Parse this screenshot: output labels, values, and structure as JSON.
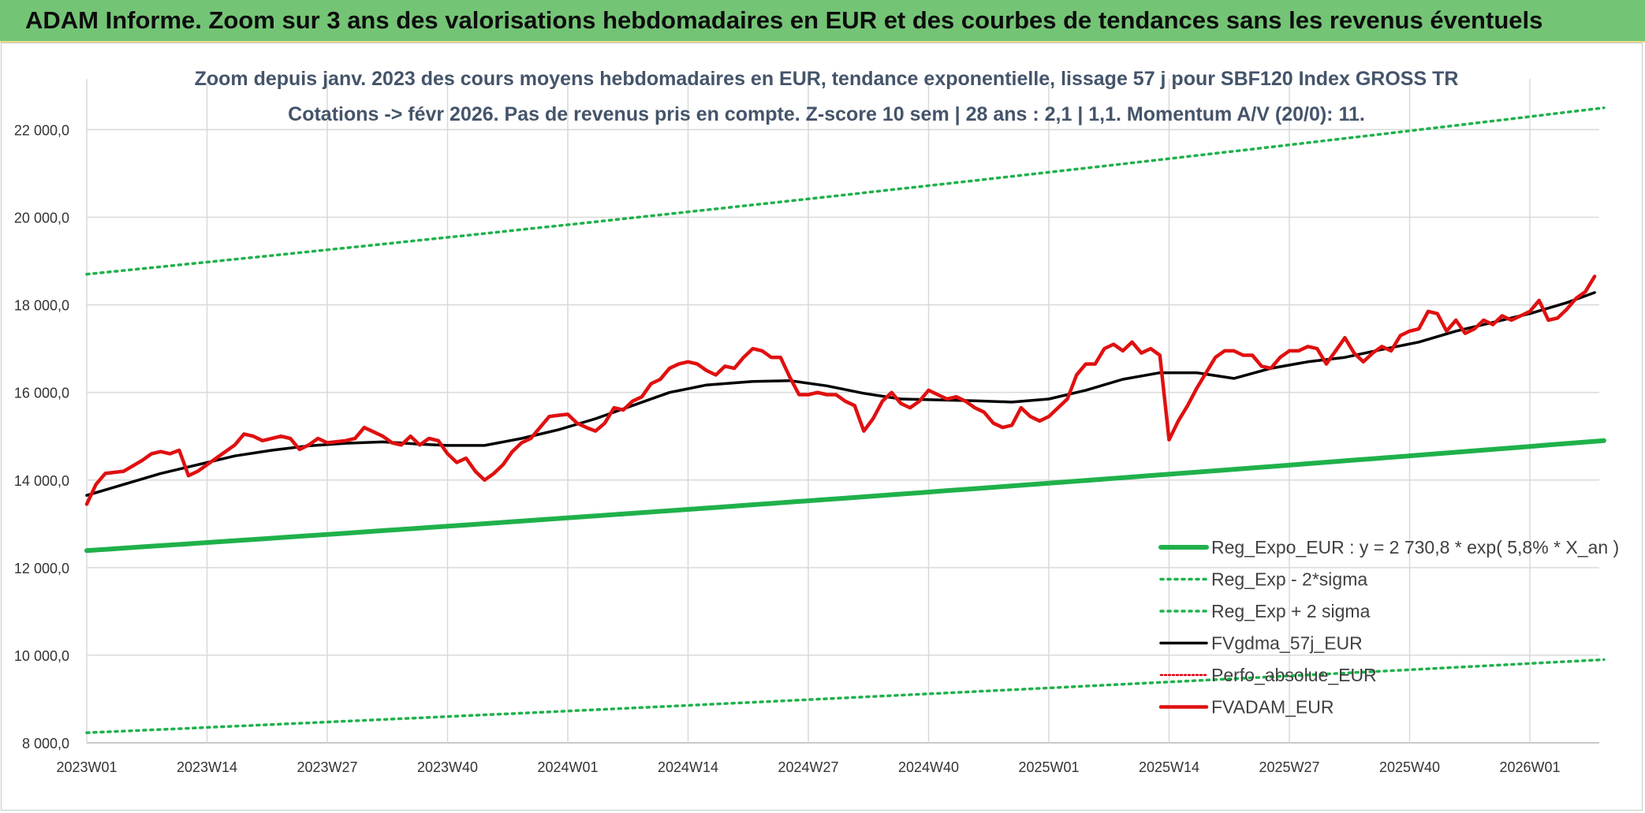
{
  "banner": {
    "title": "ADAM Informe. Zoom sur 3 ans des valorisations hebdomadaires en EUR et des courbes de tendances sans les revenus éventuels"
  },
  "colors": {
    "banner_bg": "#74c476",
    "reg_expo": "#1fb14b",
    "sigma": "#1fb14b",
    "fvgdma": "#000000",
    "perfo": "#e0000f",
    "fvadam": "#e01010"
  },
  "chart_data": {
    "type": "line",
    "title": "Zoom depuis janv. 2023 des cours moyens hebdomadaires en EUR, tendance exponentielle, lissage 57 j pour SBF120 Index GROSS TR",
    "subtitle": "Cotations -> févr 2026. Pas de revenus pris en compte. Z-score 10 sem | 28 ans : 2,1 | 1,1. Momentum A/V (20/0): 11.",
    "ylim": [
      8000,
      22800
    ],
    "yticks": [
      8000,
      10000,
      12000,
      14000,
      16000,
      18000,
      20000,
      22000
    ],
    "ytick_labels": [
      "8 000,0",
      "10 000,0",
      "12 000,0",
      "14 000,0",
      "16 000,0",
      "18 000,0",
      "20 000,0",
      "22 000,0"
    ],
    "xlim": [
      0,
      162
    ],
    "xticks": [
      0,
      13,
      26,
      39,
      52,
      65,
      78,
      91,
      104,
      117,
      130,
      143,
      156
    ],
    "xtick_labels": [
      "2023W01",
      "2023W14",
      "2023W27",
      "2023W40",
      "2024W01",
      "2024W14",
      "2024W27",
      "2024W40",
      "2025W01",
      "2025W14",
      "2025W27",
      "2025W40",
      "2026W01"
    ],
    "grid": true,
    "legend_position": "bottom-right",
    "series": [
      {
        "name": "Reg_Expo_EUR : y = 2 730,8 * exp( 5,8% *  X_an )",
        "style": "solid-thick",
        "x": [
          0,
          164
        ],
        "start": 12390,
        "end": 14900,
        "kind": "exp"
      },
      {
        "name": "Reg_Exp - 2*sigma",
        "style": "dotted",
        "x": [
          0,
          164
        ],
        "start": 8230,
        "end": 9900,
        "kind": "exp"
      },
      {
        "name": "Reg_Exp + 2 sigma",
        "style": "dotted",
        "x": [
          0,
          164
        ],
        "start": 18700,
        "end": 22500,
        "kind": "exp"
      },
      {
        "name": "FVgdma_57j_EUR",
        "style": "solid",
        "kind": "points",
        "points": [
          [
            0,
            13650
          ],
          [
            4,
            13900
          ],
          [
            8,
            14150
          ],
          [
            12,
            14350
          ],
          [
            16,
            14550
          ],
          [
            20,
            14680
          ],
          [
            24,
            14780
          ],
          [
            28,
            14840
          ],
          [
            32,
            14870
          ],
          [
            36,
            14820
          ],
          [
            39,
            14790
          ],
          [
            43,
            14790
          ],
          [
            47,
            14950
          ],
          [
            51,
            15150
          ],
          [
            55,
            15400
          ],
          [
            59,
            15700
          ],
          [
            63,
            16000
          ],
          [
            67,
            16170
          ],
          [
            72,
            16250
          ],
          [
            76,
            16270
          ],
          [
            80,
            16150
          ],
          [
            84,
            15980
          ],
          [
            88,
            15850
          ],
          [
            92,
            15830
          ],
          [
            96,
            15810
          ],
          [
            100,
            15780
          ],
          [
            104,
            15850
          ],
          [
            108,
            16050
          ],
          [
            112,
            16300
          ],
          [
            116,
            16450
          ],
          [
            120,
            16450
          ],
          [
            124,
            16320
          ],
          [
            128,
            16550
          ],
          [
            132,
            16700
          ],
          [
            136,
            16800
          ],
          [
            140,
            16980
          ],
          [
            144,
            17150
          ],
          [
            148,
            17400
          ],
          [
            152,
            17600
          ],
          [
            156,
            17800
          ],
          [
            160,
            18050
          ],
          [
            163,
            18280
          ]
        ]
      },
      {
        "name": "Perfo_absolue_EUR",
        "style": "dotted-red",
        "kind": "legend-only"
      },
      {
        "name": "FVADAM_EUR",
        "style": "solid-thick",
        "kind": "points",
        "points": [
          [
            0,
            13450
          ],
          [
            1,
            13900
          ],
          [
            2,
            14150
          ],
          [
            4,
            14200
          ],
          [
            6,
            14450
          ],
          [
            7,
            14600
          ],
          [
            8,
            14650
          ],
          [
            9,
            14600
          ],
          [
            10,
            14680
          ],
          [
            11,
            14100
          ],
          [
            12,
            14200
          ],
          [
            13,
            14350
          ],
          [
            14,
            14500
          ],
          [
            16,
            14800
          ],
          [
            17,
            15050
          ],
          [
            18,
            15000
          ],
          [
            19,
            14900
          ],
          [
            21,
            15000
          ],
          [
            22,
            14950
          ],
          [
            23,
            14700
          ],
          [
            24,
            14800
          ],
          [
            25,
            14950
          ],
          [
            26,
            14850
          ],
          [
            28,
            14900
          ],
          [
            29,
            14950
          ],
          [
            30,
            15200
          ],
          [
            31,
            15100
          ],
          [
            32,
            15000
          ],
          [
            33,
            14850
          ],
          [
            34,
            14800
          ],
          [
            35,
            15000
          ],
          [
            36,
            14800
          ],
          [
            37,
            14950
          ],
          [
            38,
            14900
          ],
          [
            39,
            14600
          ],
          [
            40,
            14400
          ],
          [
            41,
            14500
          ],
          [
            42,
            14200
          ],
          [
            43,
            14000
          ],
          [
            44,
            14150
          ],
          [
            45,
            14350
          ],
          [
            46,
            14650
          ],
          [
            47,
            14850
          ],
          [
            48,
            14950
          ],
          [
            49,
            15200
          ],
          [
            50,
            15450
          ],
          [
            51,
            15480
          ],
          [
            52,
            15500
          ],
          [
            53,
            15300
          ],
          [
            54,
            15200
          ],
          [
            55,
            15120
          ],
          [
            56,
            15300
          ],
          [
            57,
            15650
          ],
          [
            58,
            15600
          ],
          [
            59,
            15800
          ],
          [
            60,
            15900
          ],
          [
            61,
            16200
          ],
          [
            62,
            16300
          ],
          [
            63,
            16550
          ],
          [
            64,
            16650
          ],
          [
            65,
            16700
          ],
          [
            66,
            16650
          ],
          [
            67,
            16500
          ],
          [
            68,
            16400
          ],
          [
            69,
            16600
          ],
          [
            70,
            16550
          ],
          [
            71,
            16800
          ],
          [
            72,
            17000
          ],
          [
            73,
            16950
          ],
          [
            74,
            16800
          ],
          [
            75,
            16800
          ],
          [
            76,
            16350
          ],
          [
            77,
            15950
          ],
          [
            78,
            15950
          ],
          [
            79,
            16000
          ],
          [
            80,
            15950
          ],
          [
            81,
            15950
          ],
          [
            82,
            15800
          ],
          [
            83,
            15700
          ],
          [
            84,
            15120
          ],
          [
            85,
            15400
          ],
          [
            86,
            15800
          ],
          [
            87,
            16000
          ],
          [
            88,
            15750
          ],
          [
            89,
            15650
          ],
          [
            90,
            15800
          ],
          [
            91,
            16050
          ],
          [
            92,
            15950
          ],
          [
            93,
            15850
          ],
          [
            94,
            15900
          ],
          [
            95,
            15800
          ],
          [
            96,
            15650
          ],
          [
            97,
            15550
          ],
          [
            98,
            15300
          ],
          [
            99,
            15200
          ],
          [
            100,
            15250
          ],
          [
            101,
            15650
          ],
          [
            102,
            15450
          ],
          [
            103,
            15350
          ],
          [
            104,
            15450
          ],
          [
            105,
            15650
          ],
          [
            106,
            15850
          ],
          [
            107,
            16400
          ],
          [
            108,
            16650
          ],
          [
            109,
            16650
          ],
          [
            110,
            17000
          ],
          [
            111,
            17100
          ],
          [
            112,
            16950
          ],
          [
            113,
            17150
          ],
          [
            114,
            16900
          ],
          [
            115,
            17000
          ],
          [
            116,
            16850
          ],
          [
            117,
            14920
          ],
          [
            118,
            15350
          ],
          [
            119,
            15700
          ],
          [
            120,
            16100
          ],
          [
            121,
            16450
          ],
          [
            122,
            16800
          ],
          [
            123,
            16950
          ],
          [
            124,
            16950
          ],
          [
            125,
            16850
          ],
          [
            126,
            16850
          ],
          [
            127,
            16600
          ],
          [
            128,
            16550
          ],
          [
            129,
            16800
          ],
          [
            130,
            16950
          ],
          [
            131,
            16950
          ],
          [
            132,
            17050
          ],
          [
            133,
            17000
          ],
          [
            134,
            16650
          ],
          [
            135,
            16950
          ],
          [
            136,
            17250
          ],
          [
            137,
            16900
          ],
          [
            138,
            16700
          ],
          [
            139,
            16900
          ],
          [
            140,
            17050
          ],
          [
            141,
            16950
          ],
          [
            142,
            17300
          ],
          [
            143,
            17400
          ],
          [
            144,
            17450
          ],
          [
            145,
            17850
          ],
          [
            146,
            17800
          ],
          [
            147,
            17400
          ],
          [
            148,
            17650
          ],
          [
            149,
            17350
          ],
          [
            150,
            17450
          ],
          [
            151,
            17650
          ],
          [
            152,
            17550
          ],
          [
            153,
            17750
          ],
          [
            154,
            17650
          ],
          [
            155,
            17750
          ],
          [
            156,
            17850
          ],
          [
            157,
            18100
          ],
          [
            158,
            17650
          ],
          [
            159,
            17700
          ],
          [
            160,
            17900
          ],
          [
            161,
            18150
          ],
          [
            162,
            18300
          ],
          [
            163,
            18650
          ]
        ]
      }
    ]
  }
}
